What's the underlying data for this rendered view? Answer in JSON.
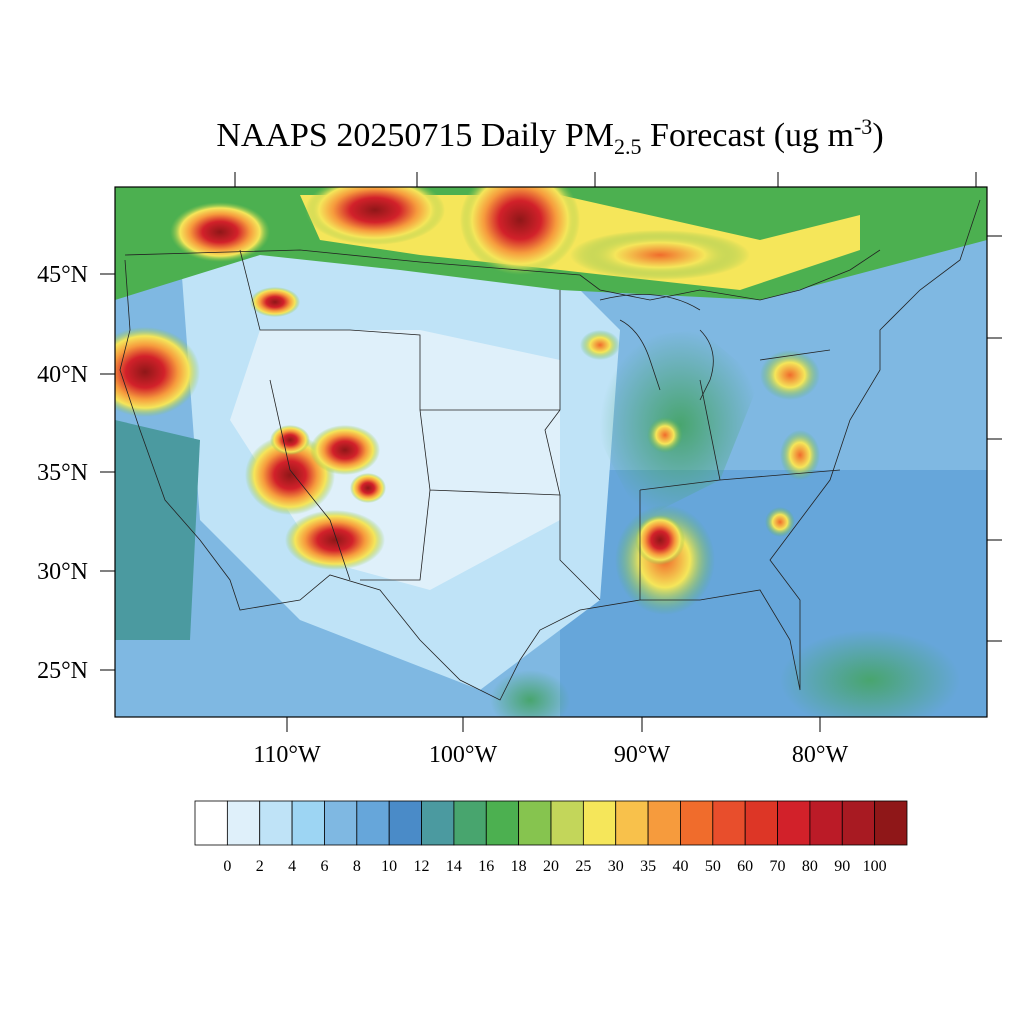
{
  "title": {
    "main": "NAAPS 20250715 Daily PM",
    "sub": "2.5",
    "rest": " Forecast (ug m",
    "sup": "-3",
    "end": ")"
  },
  "lat_labels": [
    "45°N",
    "40°N",
    "35°N",
    "30°N",
    "25°N"
  ],
  "lon_labels": [
    "110°W",
    "100°W",
    "90°W",
    "80°W"
  ],
  "colorbar": {
    "levels": [
      0,
      2,
      4,
      6,
      8,
      10,
      12,
      14,
      16,
      18,
      20,
      25,
      30,
      35,
      40,
      50,
      60,
      70,
      80,
      90,
      100
    ],
    "colors": [
      "#ffffff",
      "#dff0fa",
      "#bfe3f7",
      "#9dd5f3",
      "#7fb8e2",
      "#66a6da",
      "#4a8bc8",
      "#4b9aa0",
      "#48a56e",
      "#4cb050",
      "#86c44f",
      "#c3d65a",
      "#f5e65a",
      "#f8c14b",
      "#f69b3d",
      "#f06c2c",
      "#e84e2c",
      "#dd3626",
      "#d2212a",
      "#bb1b27",
      "#a81a22",
      "#8f1718"
    ]
  }
}
